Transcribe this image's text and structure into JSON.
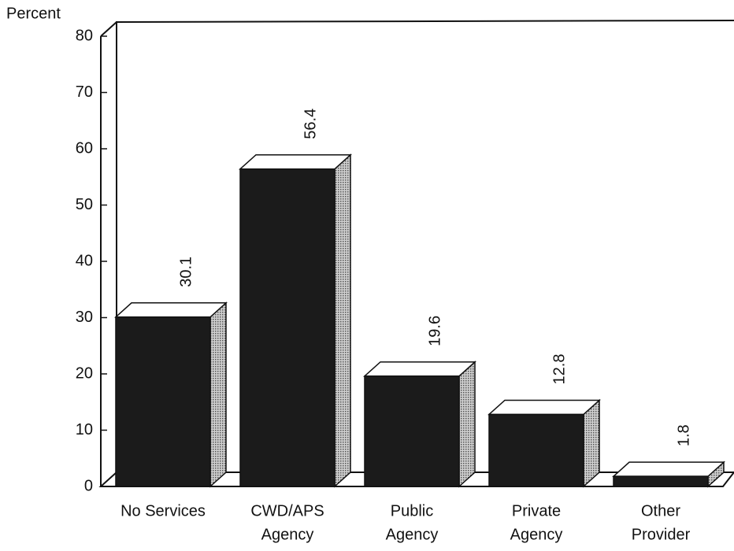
{
  "chart_data": {
    "type": "bar3d",
    "y_axis_label": "Percent",
    "categories": [
      [
        "No Services"
      ],
      [
        "CWD/APS",
        "Agency"
      ],
      [
        "Public",
        "Agency"
      ],
      [
        "Private",
        "Agency"
      ],
      [
        "Other",
        "Provider"
      ]
    ],
    "values": [
      30.1,
      56.4,
      19.6,
      12.8,
      1.8
    ],
    "color": "#1b1b1b",
    "ylim": [
      0,
      80
    ],
    "yticks": [
      0,
      10,
      20,
      30,
      40,
      50,
      60,
      70,
      80
    ]
  }
}
